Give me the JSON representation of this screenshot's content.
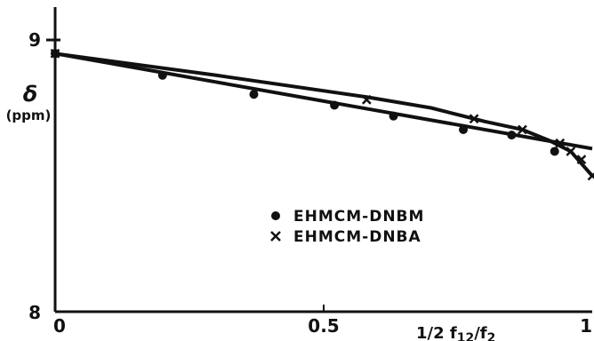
{
  "chart_data": {
    "type": "scatter",
    "xlabel": {
      "prefix": "1/2 f",
      "sub1": "12",
      "mid": "/f",
      "sub2": "2"
    },
    "ylabel": {
      "symbol": "δ",
      "unit": "(ppm)"
    },
    "xlim": [
      0,
      1
    ],
    "ylim": [
      8,
      9.1
    ],
    "x_ticks": [
      {
        "value": 0,
        "label": "0"
      },
      {
        "value": 0.5,
        "label": "0.5"
      },
      {
        "value": 1,
        "label": "1"
      }
    ],
    "y_ticks": [
      {
        "value": 9,
        "label": "9"
      },
      {
        "value": 8,
        "label": "8"
      }
    ],
    "series": [
      {
        "name": "EHMCM-DNBM",
        "marker": "dot",
        "points": [
          {
            "x": 0.0,
            "y": 8.95
          },
          {
            "x": 0.2,
            "y": 8.87
          },
          {
            "x": 0.37,
            "y": 8.8
          },
          {
            "x": 0.52,
            "y": 8.76
          },
          {
            "x": 0.63,
            "y": 8.72
          },
          {
            "x": 0.76,
            "y": 8.67
          },
          {
            "x": 0.85,
            "y": 8.65
          },
          {
            "x": 0.93,
            "y": 8.59
          }
        ],
        "fit_line": [
          {
            "x": 0.0,
            "y": 8.95
          },
          {
            "x": 1.0,
            "y": 8.6
          }
        ]
      },
      {
        "name": "EHMCM-DNBA",
        "marker": "cross",
        "points": [
          {
            "x": 0.0,
            "y": 8.95
          },
          {
            "x": 0.58,
            "y": 8.78
          },
          {
            "x": 0.78,
            "y": 8.71
          },
          {
            "x": 0.87,
            "y": 8.67
          },
          {
            "x": 0.94,
            "y": 8.62
          },
          {
            "x": 0.96,
            "y": 8.59
          },
          {
            "x": 0.98,
            "y": 8.56
          },
          {
            "x": 1.0,
            "y": 8.5
          }
        ],
        "fit_curve": [
          {
            "x": 0.0,
            "y": 8.95
          },
          {
            "x": 0.3,
            "y": 8.87
          },
          {
            "x": 0.58,
            "y": 8.79
          },
          {
            "x": 0.7,
            "y": 8.75
          },
          {
            "x": 0.8,
            "y": 8.7
          },
          {
            "x": 0.87,
            "y": 8.67
          },
          {
            "x": 0.92,
            "y": 8.63
          },
          {
            "x": 0.96,
            "y": 8.59
          },
          {
            "x": 1.0,
            "y": 8.5
          }
        ]
      }
    ],
    "legend": {
      "placement": "center",
      "entries": [
        {
          "label": "EHMCM-DNBM",
          "marker": "dot"
        },
        {
          "label": "EHMCM-DNBA",
          "marker": "cross"
        }
      ]
    },
    "grid": false
  }
}
